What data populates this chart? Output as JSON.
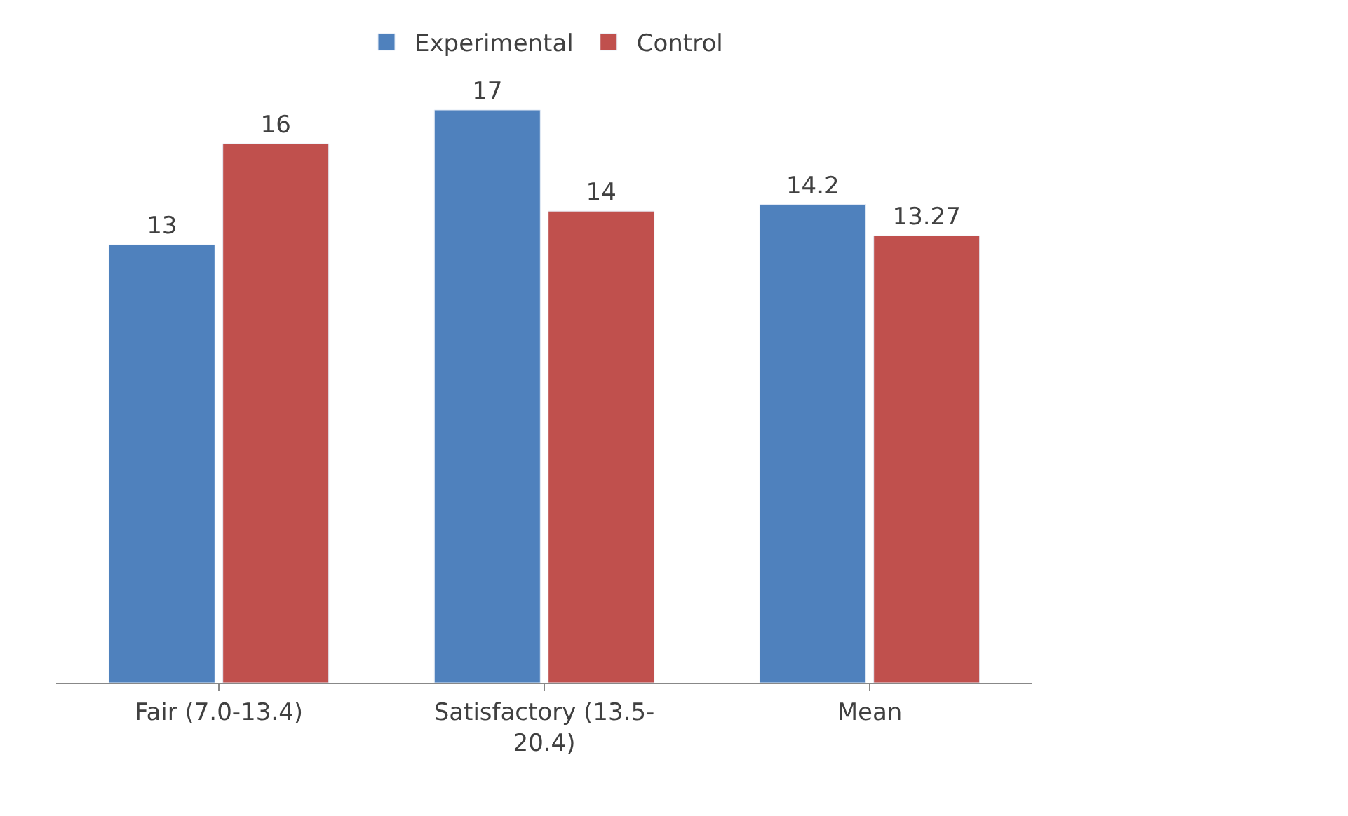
{
  "chart_data": {
    "type": "bar",
    "categories": [
      "Fair (7.0-13.4)",
      "Satisfactory (13.5-20.4)",
      "Mean"
    ],
    "series": [
      {
        "name": "Experimental",
        "color": "#4f81bd",
        "values": [
          13,
          17,
          14.2
        ]
      },
      {
        "name": "Control",
        "color": "#c0504d",
        "values": [
          16,
          14,
          13.27
        ]
      }
    ],
    "data_labels": true,
    "legend": "top"
  }
}
